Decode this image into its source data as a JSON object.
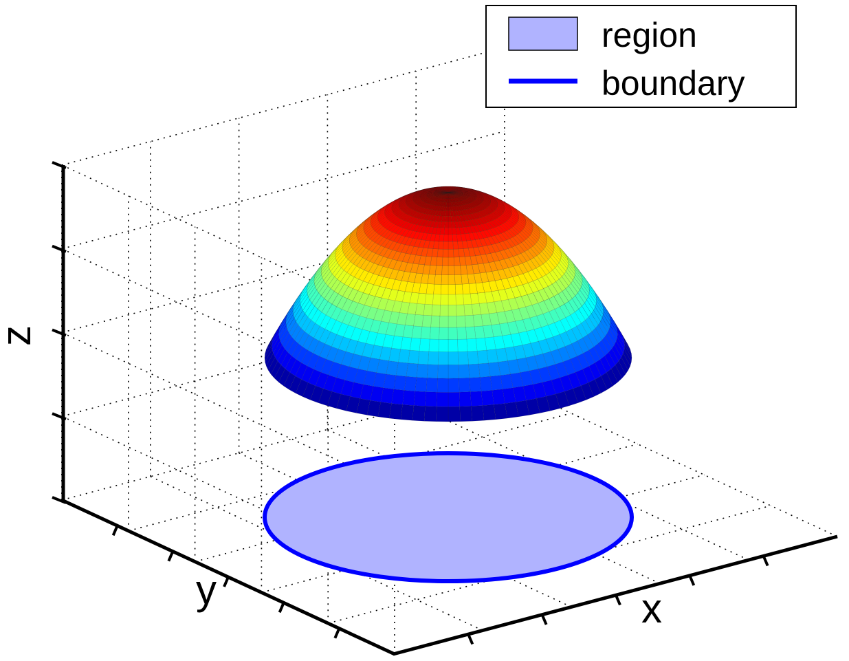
{
  "chart_data": {
    "type": "surface3d",
    "title": "",
    "xlabel": "x",
    "ylabel": "y",
    "zlabel": "z",
    "grid": true,
    "tick_labels_shown": false,
    "surface": {
      "name": "paraboloid cap",
      "colormap": "jet",
      "shape": "circular cap, highest at center",
      "colors": {
        "low": "#0000C8",
        "mid_low": "#00E5FF",
        "mid": "#FFFF00",
        "mid_high": "#FF8000",
        "high": "#C80000"
      }
    },
    "region": {
      "shape": "disk",
      "fill": "#B0B3FF"
    },
    "boundary": {
      "shape": "circle",
      "color": "#0000FF"
    },
    "legend": {
      "position": "top-right",
      "entries": [
        {
          "label": "region",
          "kind": "patch",
          "color": "#B0B3FF"
        },
        {
          "label": "boundary",
          "kind": "line",
          "color": "#0000FF"
        }
      ]
    }
  }
}
